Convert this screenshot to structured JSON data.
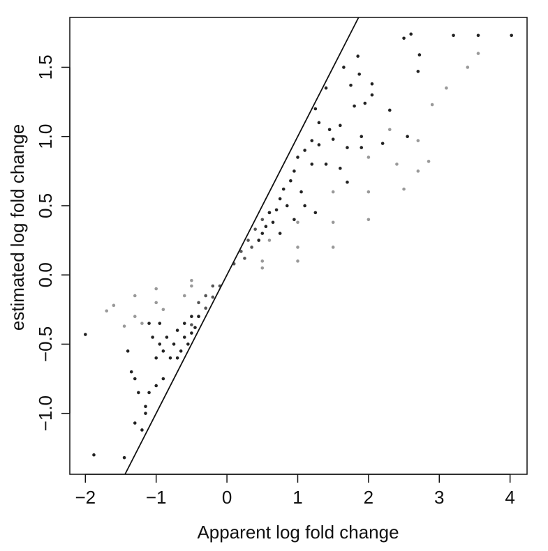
{
  "chart_data": {
    "type": "scatter",
    "x_label": "Apparent log fold change",
    "y_label": "estimated log fold change",
    "xlim": [
      -2.22,
      4.24
    ],
    "ylim": [
      -1.44,
      1.86
    ],
    "xticks": [
      {
        "value": -2,
        "label": "−2"
      },
      {
        "value": -1,
        "label": "−1"
      },
      0,
      1,
      2,
      3,
      4
    ],
    "yticks": [
      {
        "value": -1,
        "label": "−1.0"
      },
      {
        "value": -0.5,
        "label": "−0.5"
      },
      {
        "value": 0,
        "label": "0.0"
      },
      {
        "value": 0.5,
        "label": "0.5"
      },
      {
        "value": 1,
        "label": "1.0"
      },
      {
        "value": 1.5,
        "label": "1.5"
      }
    ],
    "identity_line": true,
    "series": [
      {
        "color": "#999999",
        "x": [
          0.5,
          1.0,
          1.5,
          2.0,
          2.5,
          2.7,
          2.85,
          0.5,
          1.0,
          1.5,
          2.0,
          2.4,
          2.7,
          0.6,
          1.0,
          1.5,
          2.0,
          2.3,
          2.9,
          3.1,
          3.4,
          3.55,
          -0.5,
          -1.0,
          -1.3,
          -1.6,
          -1.7,
          -0.5,
          -1.0,
          -1.3,
          -1.45,
          -0.6,
          -0.9,
          -1.2
        ],
        "values": [
          0.05,
          0.1,
          0.2,
          0.4,
          0.62,
          0.75,
          0.82,
          0.1,
          0.2,
          0.38,
          0.6,
          0.8,
          0.97,
          0.25,
          0.38,
          0.6,
          0.85,
          1.05,
          1.23,
          1.35,
          1.5,
          1.6,
          -0.04,
          -0.1,
          -0.15,
          -0.22,
          -0.26,
          -0.08,
          -0.2,
          -0.3,
          -0.37,
          -0.15,
          -0.25,
          -0.35
        ]
      },
      {
        "color": "#555555",
        "x": [
          0.1,
          0.2,
          0.3,
          0.4,
          0.5,
          0.6,
          0.35,
          0.45,
          0.25,
          -0.1,
          -0.2,
          -0.3,
          -0.4,
          -0.5,
          -0.3,
          -0.4,
          -0.2
        ],
        "values": [
          0.08,
          0.17,
          0.25,
          0.33,
          0.4,
          0.45,
          0.2,
          0.25,
          0.12,
          -0.08,
          -0.16,
          -0.24,
          -0.3,
          -0.36,
          -0.15,
          -0.2,
          -0.08
        ]
      },
      {
        "color": "#222222",
        "x": [
          4.02,
          3.55,
          3.2,
          2.6,
          2.5,
          2.72,
          2.7,
          1.85,
          1.65,
          1.87,
          2.05,
          1.75,
          2.05,
          1.4,
          1.95,
          1.8,
          2.3,
          1.6,
          1.25,
          1.3,
          1.45,
          2.55,
          1.9,
          1.2,
          1.3,
          1.5,
          1.7,
          1.1,
          1.0,
          1.2,
          0.95,
          1.4,
          1.6,
          1.9,
          2.2,
          1.7,
          0.9,
          0.8,
          1.05,
          0.75,
          0.85,
          1.1,
          0.7,
          0.6,
          0.95,
          0.65,
          1.25,
          0.55,
          0.5,
          0.75,
          0.45,
          -2.0,
          -1.88,
          -1.45,
          -1.4,
          -1.35,
          -1.3,
          -1.25,
          -1.3,
          -1.2,
          -1.15,
          -1.15,
          -1.1,
          -1.0,
          -1.0,
          -0.95,
          -0.9,
          -0.9,
          -0.85,
          -0.8,
          -0.75,
          -0.7,
          -0.7,
          -0.65,
          -0.6,
          -0.6,
          -0.55,
          -0.5,
          -0.5,
          -0.45,
          -0.4,
          -1.1,
          -1.05,
          -0.95
        ],
        "values": [
          1.73,
          1.73,
          1.73,
          1.74,
          1.71,
          1.59,
          1.47,
          1.58,
          1.5,
          1.45,
          1.38,
          1.37,
          1.3,
          1.35,
          1.24,
          1.22,
          1.19,
          1.08,
          1.2,
          1.1,
          1.05,
          1.0,
          1.0,
          0.97,
          0.94,
          0.98,
          0.92,
          0.9,
          0.85,
          0.8,
          0.75,
          0.8,
          0.77,
          0.92,
          0.95,
          0.67,
          0.68,
          0.62,
          0.6,
          0.55,
          0.5,
          0.5,
          0.47,
          0.45,
          0.4,
          0.38,
          0.45,
          0.35,
          0.3,
          0.3,
          0.25,
          -0.43,
          -1.3,
          -1.32,
          -0.55,
          -0.7,
          -0.75,
          -0.85,
          -1.07,
          -1.12,
          -1.0,
          -0.95,
          -0.85,
          -0.6,
          -0.8,
          -0.5,
          -0.55,
          -0.75,
          -0.45,
          -0.6,
          -0.5,
          -0.4,
          -0.6,
          -0.55,
          -0.35,
          -0.45,
          -0.5,
          -0.3,
          -0.42,
          -0.38,
          -0.3,
          -0.35,
          -0.45,
          -0.35
        ]
      }
    ]
  }
}
